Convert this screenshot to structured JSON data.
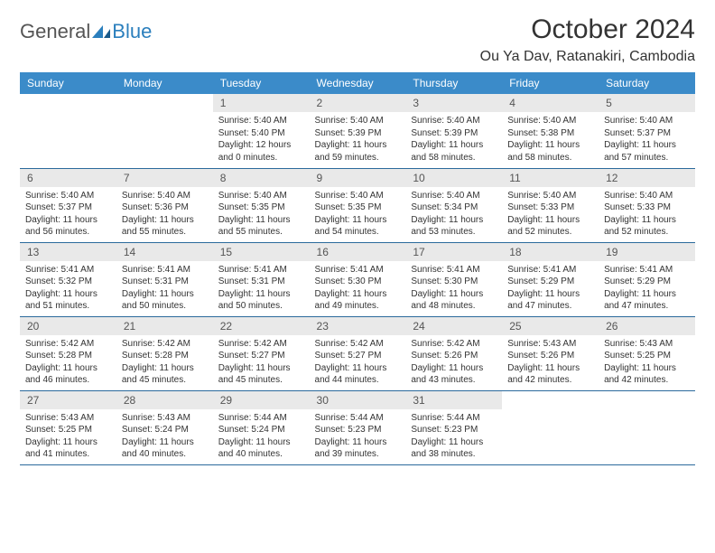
{
  "brand": {
    "part1": "General",
    "part2": "Blue",
    "accent": "#2b7fbd"
  },
  "title": "October 2024",
  "location": "Ou Ya Dav, Ratanakiri, Cambodia",
  "colors": {
    "header_bg": "#3b8bc9",
    "header_text": "#ffffff",
    "daynum_bg": "#e9e9e9",
    "row_border": "#2b6a9c",
    "text": "#333333",
    "background": "#ffffff"
  },
  "fonts": {
    "body_size": 10,
    "daynum_size": 12,
    "title_size": 30,
    "location_size": 16,
    "dayheader_size": 12
  },
  "day_headers": [
    "Sunday",
    "Monday",
    "Tuesday",
    "Wednesday",
    "Thursday",
    "Friday",
    "Saturday"
  ],
  "weeks": [
    [
      {
        "n": "",
        "sunrise": "",
        "sunset": "",
        "daylight": "",
        "empty": true
      },
      {
        "n": "",
        "sunrise": "",
        "sunset": "",
        "daylight": "",
        "empty": true
      },
      {
        "n": "1",
        "sunrise": "Sunrise: 5:40 AM",
        "sunset": "Sunset: 5:40 PM",
        "daylight": "Daylight: 12 hours and 0 minutes."
      },
      {
        "n": "2",
        "sunrise": "Sunrise: 5:40 AM",
        "sunset": "Sunset: 5:39 PM",
        "daylight": "Daylight: 11 hours and 59 minutes."
      },
      {
        "n": "3",
        "sunrise": "Sunrise: 5:40 AM",
        "sunset": "Sunset: 5:39 PM",
        "daylight": "Daylight: 11 hours and 58 minutes."
      },
      {
        "n": "4",
        "sunrise": "Sunrise: 5:40 AM",
        "sunset": "Sunset: 5:38 PM",
        "daylight": "Daylight: 11 hours and 58 minutes."
      },
      {
        "n": "5",
        "sunrise": "Sunrise: 5:40 AM",
        "sunset": "Sunset: 5:37 PM",
        "daylight": "Daylight: 11 hours and 57 minutes."
      }
    ],
    [
      {
        "n": "6",
        "sunrise": "Sunrise: 5:40 AM",
        "sunset": "Sunset: 5:37 PM",
        "daylight": "Daylight: 11 hours and 56 minutes."
      },
      {
        "n": "7",
        "sunrise": "Sunrise: 5:40 AM",
        "sunset": "Sunset: 5:36 PM",
        "daylight": "Daylight: 11 hours and 55 minutes."
      },
      {
        "n": "8",
        "sunrise": "Sunrise: 5:40 AM",
        "sunset": "Sunset: 5:35 PM",
        "daylight": "Daylight: 11 hours and 55 minutes."
      },
      {
        "n": "9",
        "sunrise": "Sunrise: 5:40 AM",
        "sunset": "Sunset: 5:35 PM",
        "daylight": "Daylight: 11 hours and 54 minutes."
      },
      {
        "n": "10",
        "sunrise": "Sunrise: 5:40 AM",
        "sunset": "Sunset: 5:34 PM",
        "daylight": "Daylight: 11 hours and 53 minutes."
      },
      {
        "n": "11",
        "sunrise": "Sunrise: 5:40 AM",
        "sunset": "Sunset: 5:33 PM",
        "daylight": "Daylight: 11 hours and 52 minutes."
      },
      {
        "n": "12",
        "sunrise": "Sunrise: 5:40 AM",
        "sunset": "Sunset: 5:33 PM",
        "daylight": "Daylight: 11 hours and 52 minutes."
      }
    ],
    [
      {
        "n": "13",
        "sunrise": "Sunrise: 5:41 AM",
        "sunset": "Sunset: 5:32 PM",
        "daylight": "Daylight: 11 hours and 51 minutes."
      },
      {
        "n": "14",
        "sunrise": "Sunrise: 5:41 AM",
        "sunset": "Sunset: 5:31 PM",
        "daylight": "Daylight: 11 hours and 50 minutes."
      },
      {
        "n": "15",
        "sunrise": "Sunrise: 5:41 AM",
        "sunset": "Sunset: 5:31 PM",
        "daylight": "Daylight: 11 hours and 50 minutes."
      },
      {
        "n": "16",
        "sunrise": "Sunrise: 5:41 AM",
        "sunset": "Sunset: 5:30 PM",
        "daylight": "Daylight: 11 hours and 49 minutes."
      },
      {
        "n": "17",
        "sunrise": "Sunrise: 5:41 AM",
        "sunset": "Sunset: 5:30 PM",
        "daylight": "Daylight: 11 hours and 48 minutes."
      },
      {
        "n": "18",
        "sunrise": "Sunrise: 5:41 AM",
        "sunset": "Sunset: 5:29 PM",
        "daylight": "Daylight: 11 hours and 47 minutes."
      },
      {
        "n": "19",
        "sunrise": "Sunrise: 5:41 AM",
        "sunset": "Sunset: 5:29 PM",
        "daylight": "Daylight: 11 hours and 47 minutes."
      }
    ],
    [
      {
        "n": "20",
        "sunrise": "Sunrise: 5:42 AM",
        "sunset": "Sunset: 5:28 PM",
        "daylight": "Daylight: 11 hours and 46 minutes."
      },
      {
        "n": "21",
        "sunrise": "Sunrise: 5:42 AM",
        "sunset": "Sunset: 5:28 PM",
        "daylight": "Daylight: 11 hours and 45 minutes."
      },
      {
        "n": "22",
        "sunrise": "Sunrise: 5:42 AM",
        "sunset": "Sunset: 5:27 PM",
        "daylight": "Daylight: 11 hours and 45 minutes."
      },
      {
        "n": "23",
        "sunrise": "Sunrise: 5:42 AM",
        "sunset": "Sunset: 5:27 PM",
        "daylight": "Daylight: 11 hours and 44 minutes."
      },
      {
        "n": "24",
        "sunrise": "Sunrise: 5:42 AM",
        "sunset": "Sunset: 5:26 PM",
        "daylight": "Daylight: 11 hours and 43 minutes."
      },
      {
        "n": "25",
        "sunrise": "Sunrise: 5:43 AM",
        "sunset": "Sunset: 5:26 PM",
        "daylight": "Daylight: 11 hours and 42 minutes."
      },
      {
        "n": "26",
        "sunrise": "Sunrise: 5:43 AM",
        "sunset": "Sunset: 5:25 PM",
        "daylight": "Daylight: 11 hours and 42 minutes."
      }
    ],
    [
      {
        "n": "27",
        "sunrise": "Sunrise: 5:43 AM",
        "sunset": "Sunset: 5:25 PM",
        "daylight": "Daylight: 11 hours and 41 minutes."
      },
      {
        "n": "28",
        "sunrise": "Sunrise: 5:43 AM",
        "sunset": "Sunset: 5:24 PM",
        "daylight": "Daylight: 11 hours and 40 minutes."
      },
      {
        "n": "29",
        "sunrise": "Sunrise: 5:44 AM",
        "sunset": "Sunset: 5:24 PM",
        "daylight": "Daylight: 11 hours and 40 minutes."
      },
      {
        "n": "30",
        "sunrise": "Sunrise: 5:44 AM",
        "sunset": "Sunset: 5:23 PM",
        "daylight": "Daylight: 11 hours and 39 minutes."
      },
      {
        "n": "31",
        "sunrise": "Sunrise: 5:44 AM",
        "sunset": "Sunset: 5:23 PM",
        "daylight": "Daylight: 11 hours and 38 minutes."
      },
      {
        "n": "",
        "sunrise": "",
        "sunset": "",
        "daylight": "",
        "empty": true
      },
      {
        "n": "",
        "sunrise": "",
        "sunset": "",
        "daylight": "",
        "empty": true
      }
    ]
  ]
}
